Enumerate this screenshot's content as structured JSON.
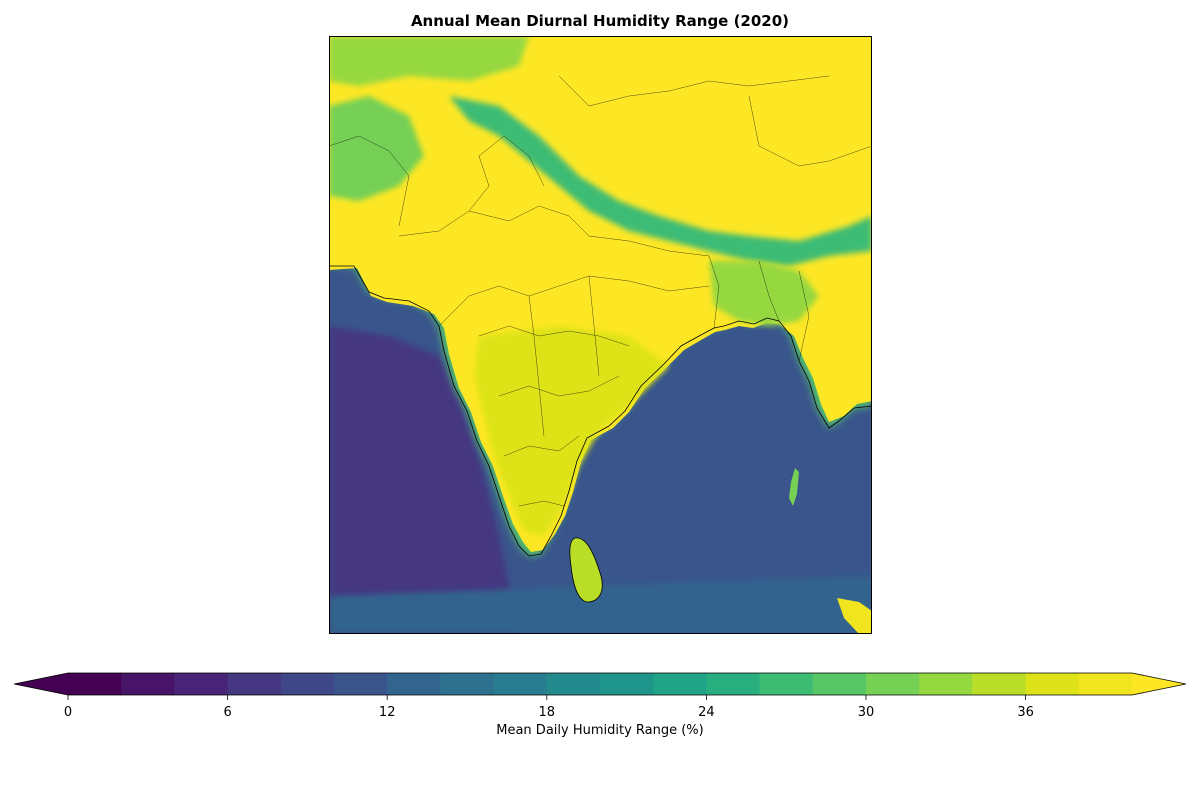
{
  "chart_data": {
    "type": "heatmap",
    "title": "Annual Mean Diurnal Humidity Range (2020)",
    "colorbar": {
      "label": "Mean Daily Humidity Range (%)",
      "min": 0,
      "max": 40,
      "step": 2,
      "ticks": [
        0,
        6,
        12,
        18,
        24,
        30,
        36
      ],
      "extend": "both",
      "colormap": "viridis",
      "colors": [
        "#440154",
        "#481467",
        "#482576",
        "#453781",
        "#3f4788",
        "#39558c",
        "#32648e",
        "#2d718e",
        "#287d8e",
        "#238a8d",
        "#1f968b",
        "#20a386",
        "#29af7f",
        "#3dbc74",
        "#56c667",
        "#75d054",
        "#95d840",
        "#bade28",
        "#dde318",
        "#f0e51e"
      ],
      "under_color": "#440154",
      "over_color": "#fde725"
    },
    "regions": [
      {
        "name": "Arabian Sea",
        "value": 8
      },
      {
        "name": "Bay of Bengal",
        "value": 10
      },
      {
        "name": "Indian Ocean",
        "value": 10
      },
      {
        "name": "Tibetan Plateau",
        "value": 40
      },
      {
        "name": "Thar Desert",
        "value": 40
      },
      {
        "name": "Deccan Plateau",
        "value": 36
      },
      {
        "name": "Himalayan foothills",
        "value": 26
      },
      {
        "name": "Bangladesh",
        "value": 32
      },
      {
        "name": "Myanmar",
        "value": 38
      },
      {
        "name": "Sri Lanka",
        "value": 34
      }
    ]
  }
}
